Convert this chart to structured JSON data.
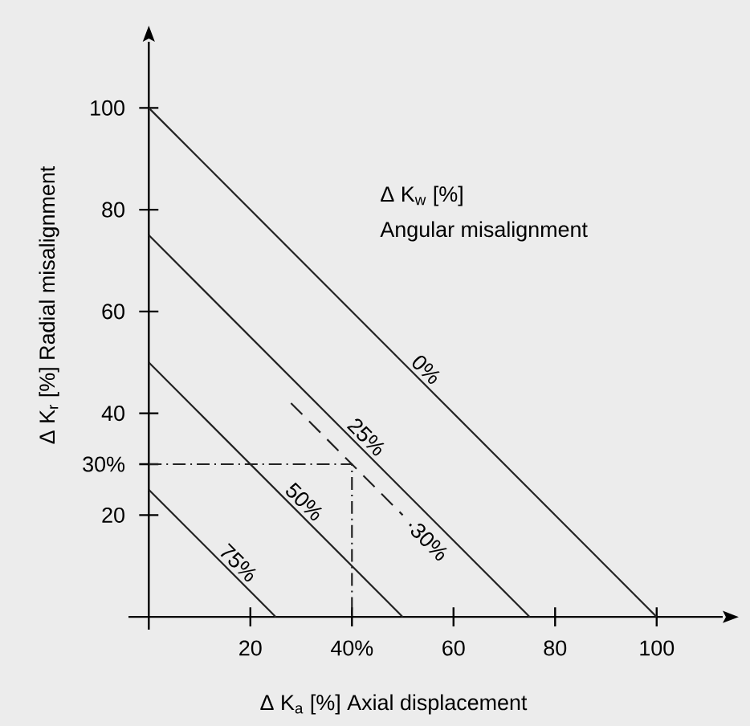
{
  "chart_data": {
    "type": "line",
    "xlabel": "Δ K$_{a}$ [%]  Axial displacement",
    "ylabel": "Δ K$_{r}$ [%]  Radial misalignment",
    "xlim": [
      -4,
      113
    ],
    "ylim": [
      -2.5,
      113
    ],
    "xticks": [
      20,
      {
        "value": 40,
        "label": "40%"
      },
      60,
      80,
      100
    ],
    "yticks": [
      20,
      {
        "value": 30,
        "label": "30%"
      },
      40,
      60,
      80,
      100
    ],
    "grid": false,
    "marker": "none",
    "series": [
      {
        "name": "0%",
        "color": "#222222",
        "x": [
          0,
          100
        ],
        "values": [
          100,
          0
        ],
        "line_style": "solid"
      },
      {
        "name": "25%",
        "color": "#222222",
        "x": [
          0,
          75
        ],
        "values": [
          75,
          0
        ],
        "line_style": "solid"
      },
      {
        "name": "50%",
        "color": "#222222",
        "x": [
          0,
          50
        ],
        "values": [
          50,
          0
        ],
        "line_style": "solid"
      },
      {
        "name": "75%",
        "color": "#222222",
        "x": [
          0,
          25
        ],
        "values": [
          25,
          0
        ],
        "line_style": "solid"
      },
      {
        "name": "·30%",
        "color": "#222222",
        "x": [
          28,
          50
        ],
        "values": [
          42,
          20
        ],
        "line_style": "dashed"
      },
      {
        "color": "#222222",
        "x": [
          0,
          40,
          40
        ],
        "values": [
          30,
          30,
          0
        ],
        "line_style": "dashdot"
      }
    ],
    "annotations": [
      "Δ K$_{w}$ [%]",
      "Angular misalignment"
    ]
  }
}
